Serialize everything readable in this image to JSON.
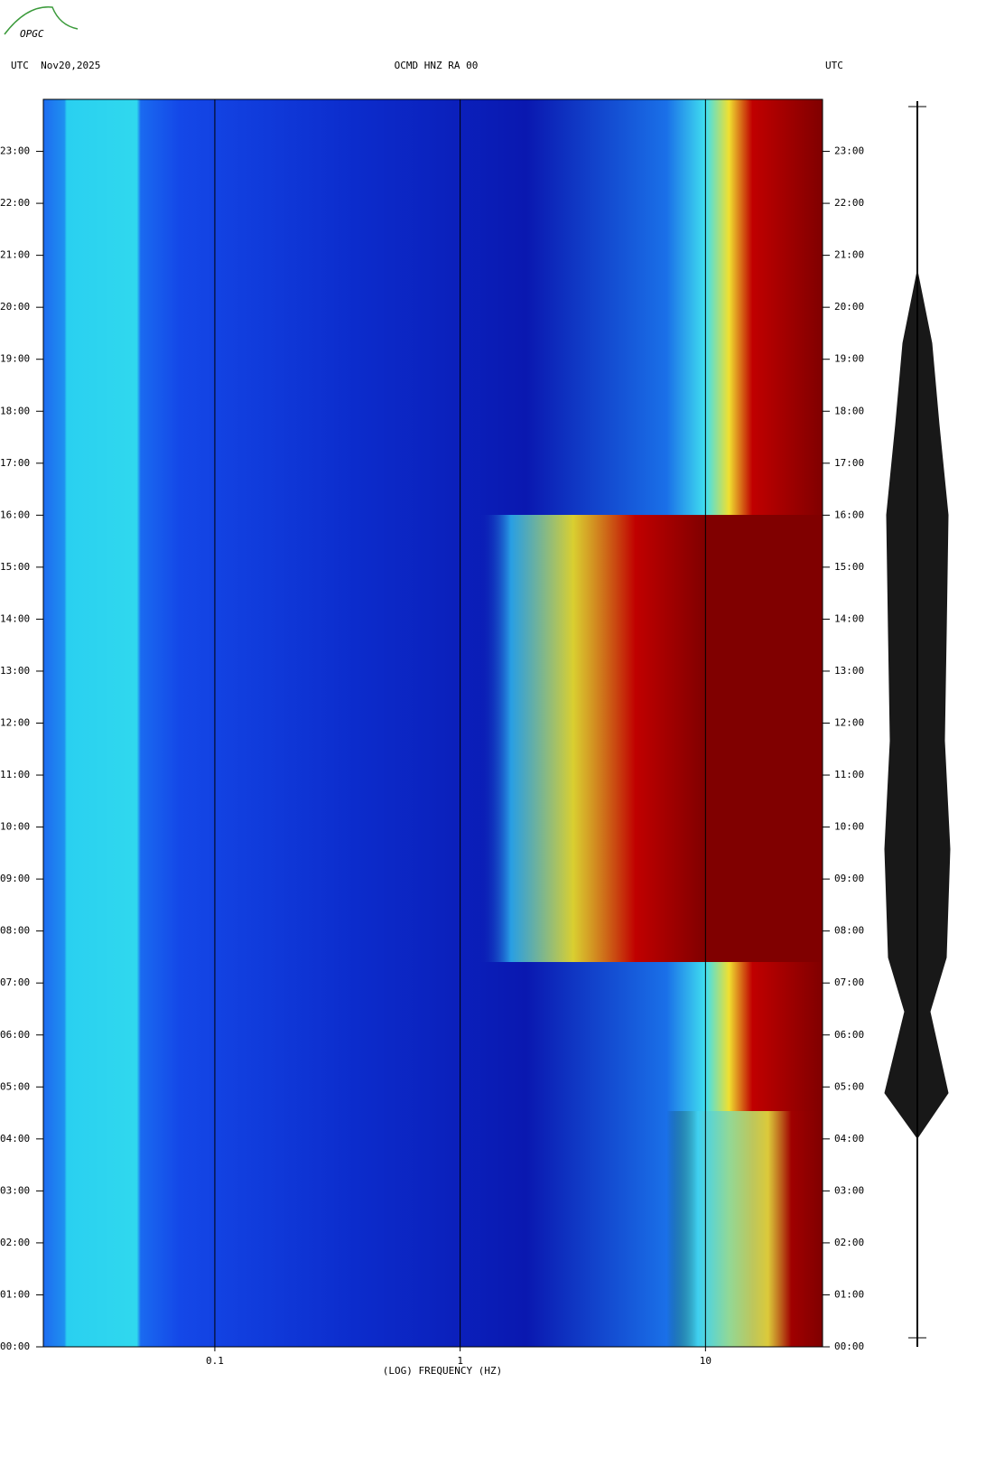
{
  "chart_data": {
    "type": "spectrogram",
    "logo": "OPGC",
    "left_header": "UTC  Nov20,2025",
    "title": "OCMD HNZ RA 00",
    "right_header": "UTC",
    "xlabel": "(LOG) FREQUENCY (HZ)",
    "xscale": "log",
    "xlim": [
      0.02,
      30
    ],
    "xticks": [
      0.1,
      1,
      10
    ],
    "ylim": [
      0,
      24
    ],
    "yticks": [
      {
        "value": 0,
        "label": "00:00"
      },
      {
        "value": 1,
        "label": "01:00"
      },
      {
        "value": 2,
        "label": "02:00"
      },
      {
        "value": 3,
        "label": "03:00"
      },
      {
        "value": 4,
        "label": "04:00"
      },
      {
        "value": 5,
        "label": "05:00"
      },
      {
        "value": 6,
        "label": "06:00"
      },
      {
        "value": 7,
        "label": "07:00"
      },
      {
        "value": 8,
        "label": "08:00"
      },
      {
        "value": 9,
        "label": "09:00"
      },
      {
        "value": 10,
        "label": "10:00"
      },
      {
        "value": 11,
        "label": "11:00"
      },
      {
        "value": 12,
        "label": "12:00"
      },
      {
        "value": 13,
        "label": "13:00"
      },
      {
        "value": 14,
        "label": "14:00"
      },
      {
        "value": 15,
        "label": "15:00"
      },
      {
        "value": 16,
        "label": "16:00"
      },
      {
        "value": 17,
        "label": "17:00"
      },
      {
        "value": 18,
        "label": "18:00"
      },
      {
        "value": 19,
        "label": "19:00"
      },
      {
        "value": 20,
        "label": "20:00"
      },
      {
        "value": 21,
        "label": "21:00"
      },
      {
        "value": 22,
        "label": "22:00"
      },
      {
        "value": 23,
        "label": "23:00"
      }
    ]
  }
}
